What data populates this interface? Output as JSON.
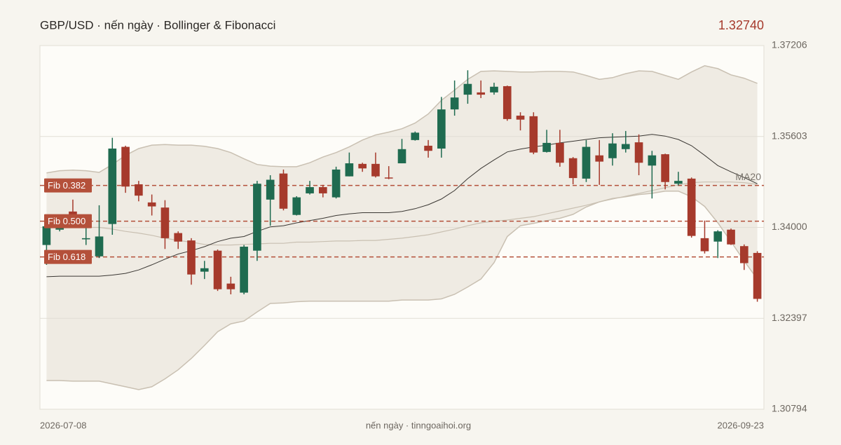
{
  "chart_data": {
    "type": "candlestick",
    "title": "GBP/USD · nến ngày · Bollinger & Fibonacci",
    "last_price": "1.32740",
    "footer_note": "nến ngày · tinngoaihoi.org",
    "categories": [
      "2026-07-08",
      null,
      null,
      null,
      null,
      null,
      null,
      null,
      null,
      null,
      null,
      null,
      null,
      null,
      null,
      null,
      null,
      null,
      null,
      null,
      null,
      null,
      null,
      null,
      null,
      null,
      null,
      null,
      null,
      null,
      null,
      null,
      null,
      null,
      null,
      null,
      null,
      null,
      null,
      null,
      null,
      null,
      null,
      null,
      null,
      null,
      null,
      null,
      null,
      null,
      null,
      null,
      null,
      null,
      "2026-09-23"
    ],
    "open": [
      1.3369,
      1.3396,
      1.3428,
      1.3379,
      1.3349,
      1.3406,
      1.3542,
      1.3476,
      1.3444,
      1.3435,
      1.339,
      1.3377,
      1.3322,
      1.3359,
      1.3301,
      1.3285,
      1.3359,
      1.3449,
      1.3495,
      1.3422,
      1.346,
      1.3471,
      1.3453,
      1.349,
      1.3512,
      1.3512,
      1.3488,
      1.3513,
      1.3554,
      1.3544,
      1.3539,
      1.3608,
      1.3634,
      1.3638,
      1.3638,
      1.3649,
      1.3597,
      1.3596,
      1.3533,
      1.3549,
      1.3522,
      1.3486,
      1.3527,
      1.3522,
      1.3538,
      1.355,
      1.3509,
      1.3529,
      1.3477,
      1.3486,
      1.3381,
      1.3375,
      1.3396,
      1.3367,
      1.3355
    ],
    "high": [
      1.3408,
      1.3418,
      1.3449,
      1.3418,
      1.3439,
      1.3558,
      1.3544,
      1.3482,
      1.3458,
      1.3448,
      1.3393,
      1.3381,
      1.3341,
      1.3361,
      1.3313,
      1.3369,
      1.3482,
      1.3492,
      1.3502,
      1.3455,
      1.3482,
      1.3475,
      1.3507,
      1.3532,
      1.3514,
      1.3532,
      1.3508,
      1.3556,
      1.3569,
      1.3554,
      1.363,
      1.3659,
      1.3677,
      1.3659,
      1.3655,
      1.365,
      1.3603,
      1.3603,
      1.3572,
      1.3572,
      1.3524,
      1.3554,
      1.3554,
      1.3566,
      1.357,
      1.3564,
      1.3535,
      1.353,
      1.3498,
      1.3488,
      1.3412,
      1.3395,
      1.3398,
      1.337,
      1.3358
    ],
    "low": [
      1.3334,
      1.3393,
      1.34,
      1.3369,
      1.3346,
      1.3387,
      1.3461,
      1.3446,
      1.3421,
      1.3362,
      1.3362,
      1.3299,
      1.3309,
      1.3288,
      1.3282,
      1.3282,
      1.3341,
      1.3403,
      1.343,
      1.3421,
      1.3458,
      1.3453,
      1.3451,
      1.349,
      1.3498,
      1.3488,
      1.3485,
      1.3513,
      1.3553,
      1.3523,
      1.3523,
      1.3597,
      1.3618,
      1.3628,
      1.3634,
      1.3588,
      1.3571,
      1.3529,
      1.3532,
      1.3507,
      1.3476,
      1.348,
      1.3475,
      1.3509,
      1.3532,
      1.3492,
      1.3451,
      1.3467,
      1.3474,
      1.3382,
      1.3354,
      1.3346,
      1.3369,
      1.3325,
      1.3269
    ],
    "close": [
      1.3402,
      1.3416,
      1.3403,
      1.3381,
      1.3384,
      1.3539,
      1.3472,
      1.3456,
      1.3437,
      1.3381,
      1.3375,
      1.3317,
      1.3328,
      1.3291,
      1.3291,
      1.3366,
      1.3477,
      1.3484,
      1.3433,
      1.3453,
      1.3471,
      1.346,
      1.3502,
      1.3513,
      1.3504,
      1.349,
      1.3487,
      1.3538,
      1.3567,
      1.3535,
      1.3608,
      1.3629,
      1.3653,
      1.3634,
      1.3648,
      1.3591,
      1.359,
      1.3532,
      1.3549,
      1.3514,
      1.3487,
      1.3542,
      1.3516,
      1.3548,
      1.3547,
      1.3514,
      1.3527,
      1.348,
      1.3482,
      1.3385,
      1.3358,
      1.3393,
      1.337,
      1.3337,
      1.3274
    ],
    "up_color": "#1f6b50",
    "down_color": "#a63a2c",
    "bollinger": {
      "color": "#c9c0b2",
      "fill": "#efebe3",
      "upper": [
        1.3496,
        1.35,
        1.3501,
        1.35,
        1.3497,
        1.3511,
        1.3527,
        1.3539,
        1.3545,
        1.3546,
        1.3545,
        1.3545,
        1.3543,
        1.3539,
        1.3532,
        1.3521,
        1.3511,
        1.3508,
        1.3507,
        1.3507,
        1.3514,
        1.3524,
        1.3532,
        1.3542,
        1.3554,
        1.3563,
        1.3568,
        1.3574,
        1.3584,
        1.36,
        1.3624,
        1.3642,
        1.3661,
        1.3675,
        1.3676,
        1.3675,
        1.3674,
        1.3674,
        1.3675,
        1.3675,
        1.3674,
        1.3668,
        1.3661,
        1.3664,
        1.3671,
        1.3676,
        1.3675,
        1.3668,
        1.3661,
        1.3674,
        1.3685,
        1.368,
        1.3669,
        1.3663,
        1.3654
      ],
      "middle": [
        1.34,
        1.3401,
        1.3401,
        1.34,
        1.34,
        1.3397,
        1.3393,
        1.339,
        1.3386,
        1.3381,
        1.3377,
        1.3374,
        1.337,
        1.3369,
        1.3369,
        1.337,
        1.3371,
        1.3372,
        1.3372,
        1.3374,
        1.3374,
        1.3375,
        1.3376,
        1.3376,
        1.3377,
        1.3377,
        1.3379,
        1.3381,
        1.3384,
        1.3387,
        1.3392,
        1.3397,
        1.3403,
        1.3408,
        1.3411,
        1.3413,
        1.3416,
        1.3419,
        1.3424,
        1.3429,
        1.3434,
        1.3439,
        1.3445,
        1.345,
        1.3455,
        1.346,
        1.3465,
        1.347,
        1.3475,
        1.3479,
        1.348,
        1.348,
        1.348,
        1.3479,
        1.3476
      ],
      "lower": [
        1.313,
        1.313,
        1.3129,
        1.3129,
        1.3129,
        1.3124,
        1.3119,
        1.3114,
        1.3119,
        1.3133,
        1.3149,
        1.3169,
        1.3192,
        1.3216,
        1.323,
        1.3235,
        1.3251,
        1.3266,
        1.3267,
        1.3269,
        1.327,
        1.327,
        1.327,
        1.327,
        1.327,
        1.327,
        1.327,
        1.3272,
        1.3272,
        1.3272,
        1.3274,
        1.3282,
        1.3295,
        1.3309,
        1.3338,
        1.3384,
        1.3403,
        1.3407,
        1.3412,
        1.3416,
        1.3423,
        1.3436,
        1.3445,
        1.3451,
        1.3454,
        1.3458,
        1.346,
        1.3464,
        1.3464,
        1.3454,
        1.3437,
        1.3408,
        1.3375,
        1.3341,
        1.3309
      ]
    },
    "lines": [
      {
        "name": "MA20",
        "color": "#3a3733",
        "values": [
          1.3313,
          1.3314,
          1.3314,
          1.3314,
          1.3314,
          1.3316,
          1.3319,
          1.3325,
          1.3334,
          1.3344,
          1.3353,
          1.3359,
          1.3366,
          1.3375,
          1.3381,
          1.3384,
          1.3393,
          1.3401,
          1.3403,
          1.3408,
          1.3412,
          1.3416,
          1.3421,
          1.3424,
          1.3426,
          1.3426,
          1.3426,
          1.3428,
          1.3433,
          1.344,
          1.345,
          1.3465,
          1.3486,
          1.3504,
          1.3519,
          1.3533,
          1.3538,
          1.3542,
          1.3545,
          1.3549,
          1.3552,
          1.3555,
          1.3558,
          1.3559,
          1.356,
          1.3561,
          1.3564,
          1.3561,
          1.3555,
          1.3544,
          1.3527,
          1.3509,
          1.3498,
          1.3488,
          1.3477
        ]
      }
    ],
    "fib_levels": [
      {
        "label": "Fib 0.382",
        "value": 1.3474
      },
      {
        "label": "Fib 0.500",
        "value": 1.3411
      },
      {
        "label": "Fib 0.618",
        "value": 1.3348
      }
    ],
    "fib_color": "#b4503a",
    "ylim": [
      1.30794,
      1.37206
    ],
    "yticks": [
      1.30794,
      1.32397,
      {
        "value": 1.34,
        "label": "1.34000"
      },
      1.35603,
      1.37206
    ],
    "grid": true
  }
}
